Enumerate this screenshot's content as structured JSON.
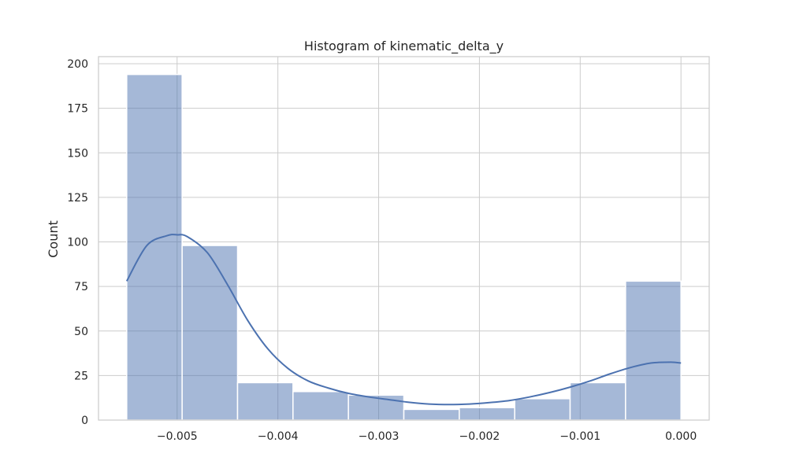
{
  "chart_data": {
    "type": "bar",
    "title": "Histogram of kinematic_delta_y",
    "xlabel": "",
    "ylabel": "Count",
    "xlim": [
      -0.00578,
      0.00028
    ],
    "ylim": [
      0,
      204
    ],
    "xticks": [
      -0.005,
      -0.004,
      -0.003,
      -0.002,
      -0.001,
      0.0
    ],
    "xtick_labels": [
      "−0.005",
      "−0.004",
      "−0.003",
      "−0.002",
      "−0.001",
      "0.000"
    ],
    "yticks": [
      0,
      25,
      50,
      75,
      100,
      125,
      150,
      175,
      200
    ],
    "ytick_labels": [
      "0",
      "25",
      "50",
      "75",
      "100",
      "125",
      "150",
      "175",
      "200"
    ],
    "grid": true,
    "bins": [
      {
        "x0": -0.0055,
        "x1": -0.00495,
        "count": 194
      },
      {
        "x0": -0.00495,
        "x1": -0.0044,
        "count": 98
      },
      {
        "x0": -0.0044,
        "x1": -0.00385,
        "count": 21
      },
      {
        "x0": -0.00385,
        "x1": -0.0033,
        "count": 16
      },
      {
        "x0": -0.0033,
        "x1": -0.00275,
        "count": 14
      },
      {
        "x0": -0.00275,
        "x1": -0.0022,
        "count": 6
      },
      {
        "x0": -0.0022,
        "x1": -0.00165,
        "count": 7
      },
      {
        "x0": -0.00165,
        "x1": -0.0011,
        "count": 12
      },
      {
        "x0": -0.0011,
        "x1": -0.00055,
        "count": 21
      },
      {
        "x0": -0.00055,
        "x1": 0.0,
        "count": 78
      }
    ],
    "kde": {
      "x": [
        -0.0055,
        -0.0053,
        -0.0051,
        -0.005,
        -0.0049,
        -0.0047,
        -0.0045,
        -0.0043,
        -0.0041,
        -0.0039,
        -0.0037,
        -0.0035,
        -0.0033,
        -0.0031,
        -0.0029,
        -0.0027,
        -0.0025,
        -0.0023,
        -0.0021,
        -0.0019,
        -0.0017,
        -0.0015,
        -0.0013,
        -0.0011,
        -0.0009,
        -0.0007,
        -0.0005,
        -0.0003,
        -0.0001,
        0.0
      ],
      "y": [
        78,
        98,
        103.5,
        104,
        103,
        94,
        76,
        56,
        40,
        29,
        22,
        18,
        15,
        13,
        11.5,
        10,
        9,
        8.7,
        9,
        9.8,
        11,
        13,
        15.5,
        18.5,
        22,
        26,
        29.5,
        32,
        32.5,
        32
      ]
    },
    "bar_color": "#4c72b0",
    "line_color": "#4c72b0"
  }
}
